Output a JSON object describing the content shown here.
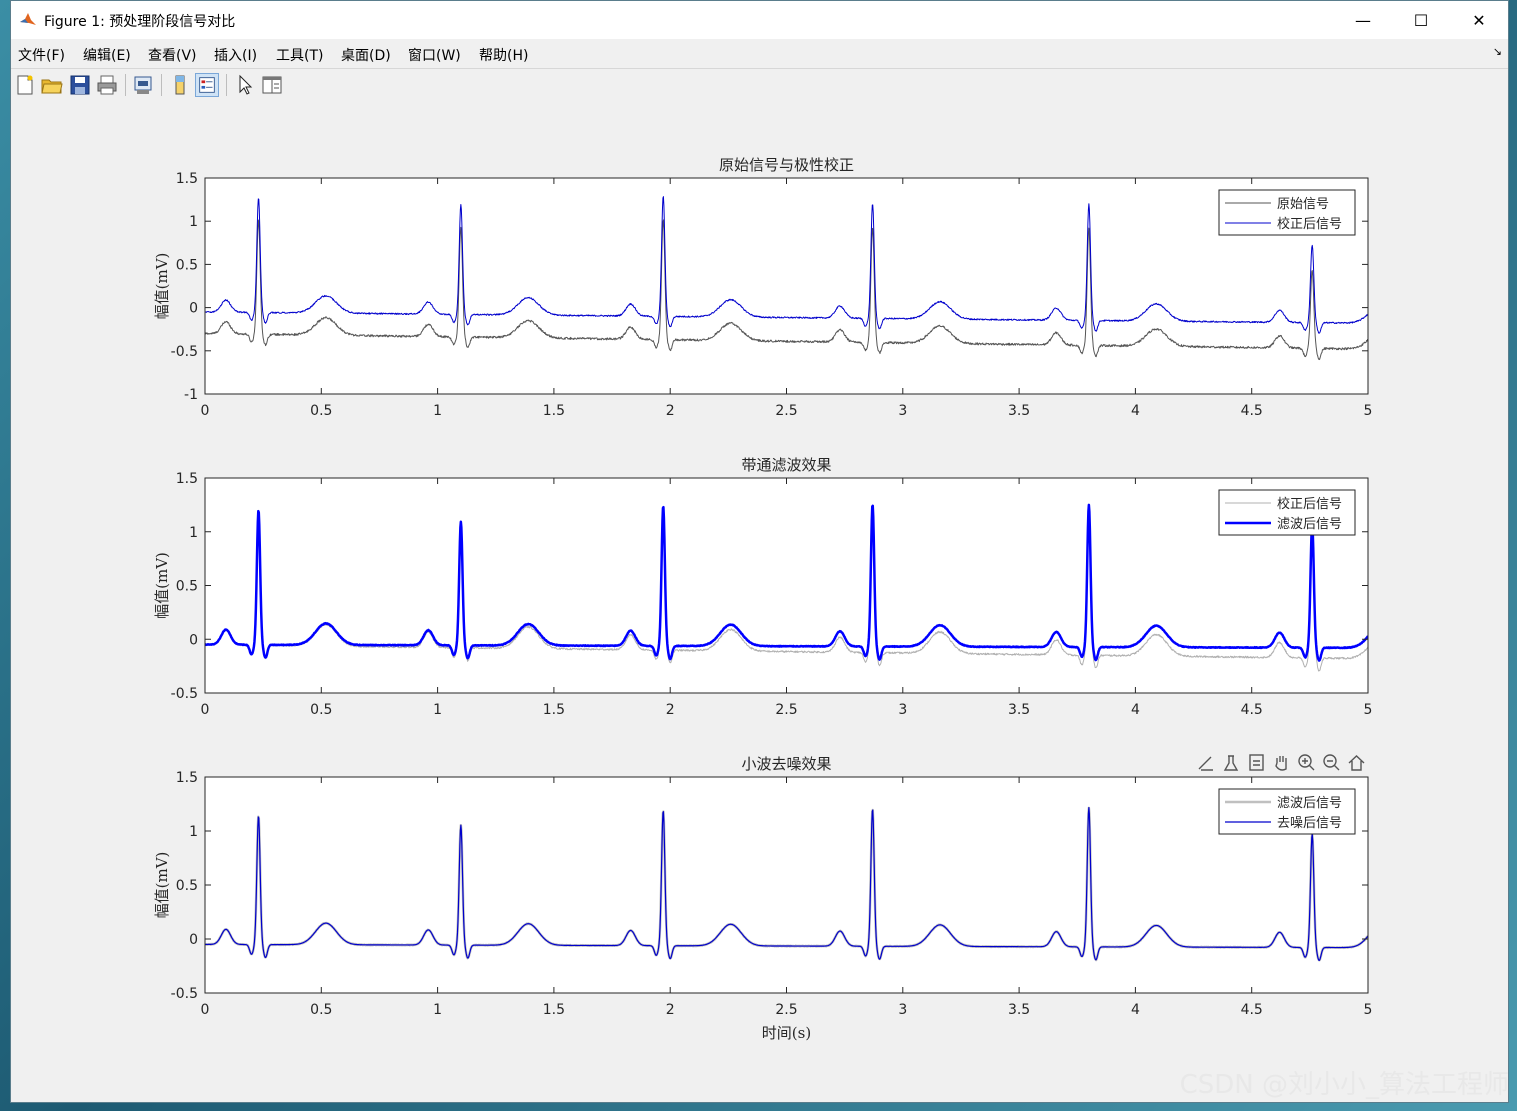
{
  "window": {
    "title": "Figure 1: 预处理阶段信号对比",
    "minimize_glyph": "—",
    "maximize_glyph": "☐",
    "close_glyph": "✕"
  },
  "menu": {
    "items": [
      "文件(F)",
      "编辑(E)",
      "查看(V)",
      "插入(I)",
      "工具(T)",
      "桌面(D)",
      "窗口(W)",
      "帮助(H)"
    ],
    "overflow_glyph": "↘"
  },
  "toolbar": {
    "icons": [
      "new-figure-icon",
      "open-file-icon",
      "save-icon",
      "print-icon",
      "print-preview-icon",
      "colorbar-icon",
      "legend-icon",
      "pointer-icon",
      "property-inspector-icon"
    ]
  },
  "axes_toolbar": {
    "icons": [
      "brush-icon",
      "data-tips-icon",
      "restore-view-icon",
      "pan-icon",
      "zoom-in-icon",
      "zoom-out-icon",
      "home-icon"
    ]
  },
  "watermark": "CSDN @刘小小_算法工程师",
  "colors": {
    "raw": "#555555",
    "corrected": "#0000cc",
    "corrected_gray": "#b0b0b0",
    "filtered": "#0000ff",
    "filtered_gray": "#c0c0c0",
    "denoised": "#0000cc"
  },
  "chart_data": [
    {
      "type": "line",
      "title": "原始信号与极性校正",
      "xlabel": "",
      "ylabel": "幅值(mV)",
      "xlim": [
        0,
        5
      ],
      "ylim": [
        -1,
        1.5
      ],
      "xticks": [
        "0",
        "0.5",
        "1",
        "1.5",
        "2",
        "2.5",
        "3",
        "3.5",
        "4",
        "4.5",
        "5"
      ],
      "yticks": [
        "-1",
        "-0.5",
        "0",
        "0.5",
        "1",
        "1.5"
      ],
      "legend_position": "top-right",
      "beats": [
        0.23,
        1.1,
        1.97,
        2.87,
        3.8,
        4.76
      ],
      "r_peaks": [
        1.38,
        1.32,
        1.44,
        1.38,
        1.4,
        0.95
      ],
      "series": [
        {
          "name": "原始信号",
          "baseline_start": -0.3,
          "baseline_end": -0.48,
          "noise": 0.012,
          "width": 1
        },
        {
          "name": "校正后信号",
          "baseline_start": -0.05,
          "baseline_end": -0.18,
          "noise": 0.008,
          "width": 1
        }
      ]
    },
    {
      "type": "line",
      "title": "带通滤波效果",
      "xlabel": "",
      "ylabel": "幅值(mV)",
      "xlim": [
        0,
        5
      ],
      "ylim": [
        -0.5,
        1.5
      ],
      "xticks": [
        "0",
        "0.5",
        "1",
        "1.5",
        "2",
        "2.5",
        "3",
        "3.5",
        "4",
        "4.5",
        "5"
      ],
      "yticks": [
        "-0.5",
        "0",
        "0.5",
        "1",
        "1.5"
      ],
      "legend_position": "top-right",
      "beats": [
        0.23,
        1.1,
        1.97,
        2.87,
        3.8,
        4.76
      ],
      "r_peaks": [
        1.3,
        1.2,
        1.35,
        1.37,
        1.37,
        1.2
      ],
      "series": [
        {
          "name": "校正后信号",
          "baseline_start": -0.05,
          "baseline_end": -0.18,
          "noise": 0.008,
          "width": 1
        },
        {
          "name": "滤波后信号",
          "baseline_start": -0.05,
          "baseline_end": -0.08,
          "noise": 0.003,
          "width": 2.5
        }
      ]
    },
    {
      "type": "line",
      "title": "小波去噪效果",
      "xlabel": "时间(s)",
      "ylabel": "幅值(mV)",
      "xlim": [
        0,
        5
      ],
      "ylim": [
        -0.5,
        1.5
      ],
      "xticks": [
        "0",
        "0.5",
        "1",
        "1.5",
        "2",
        "2.5",
        "3",
        "3.5",
        "4",
        "4.5",
        "5"
      ],
      "yticks": [
        "-0.5",
        "0",
        "0.5",
        "1",
        "1.5"
      ],
      "legend_position": "top-right",
      "beats": [
        0.23,
        1.1,
        1.97,
        2.87,
        3.8,
        4.76
      ],
      "r_peaks": [
        1.24,
        1.16,
        1.3,
        1.32,
        1.34,
        1.1
      ],
      "series": [
        {
          "name": "滤波后信号",
          "baseline_start": -0.05,
          "baseline_end": -0.08,
          "noise": 0.003,
          "width": 2.5
        },
        {
          "name": "去噪后信号",
          "baseline_start": -0.05,
          "baseline_end": -0.08,
          "noise": 0.0,
          "width": 1.2
        }
      ]
    }
  ]
}
